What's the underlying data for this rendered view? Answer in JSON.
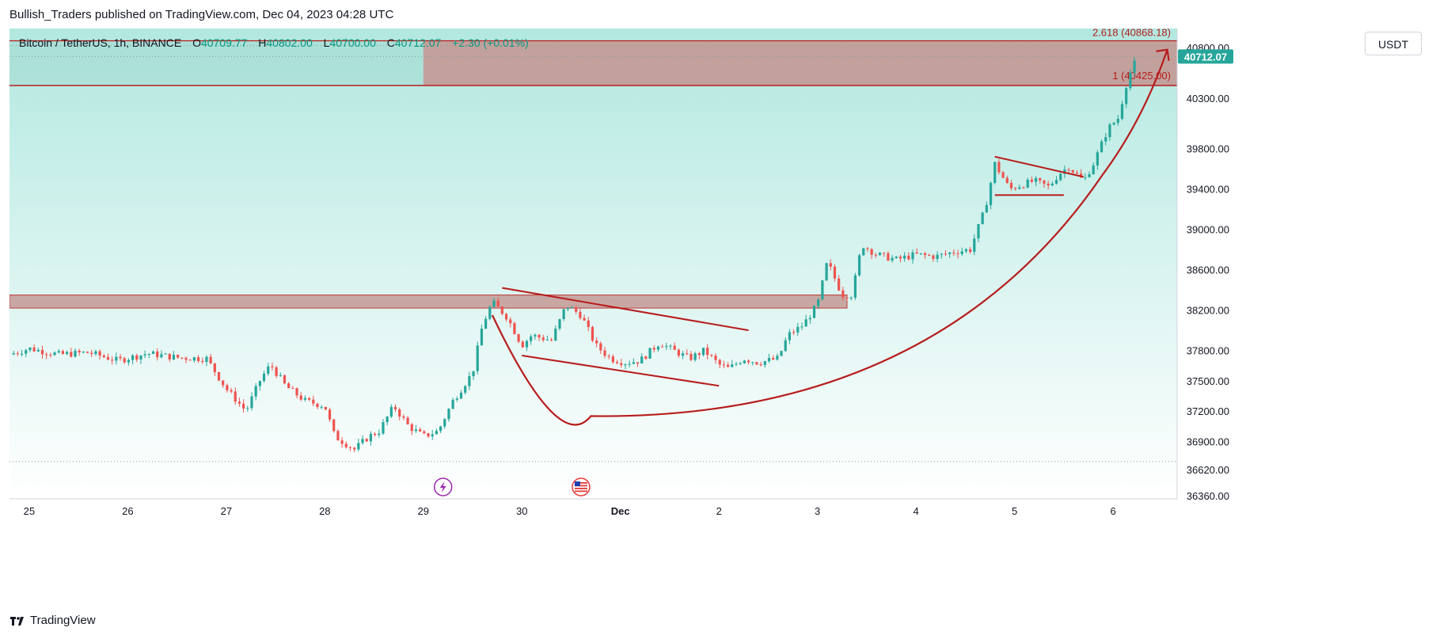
{
  "header": {
    "publisher_line": "Bullish_Traders published on TradingView.com, Dec 04, 2023 04:28 UTC"
  },
  "legend": {
    "symbol": "Bitcoin / TetherUS, 1h, BINANCE",
    "o_label": "O",
    "o_value": "40709.77",
    "h_label": "H",
    "h_value": "40802.00",
    "l_label": "L",
    "l_value": "40700.00",
    "c_label": "C",
    "c_value": "40712.07",
    "change": "+2.30 (+0.01%)"
  },
  "currency": "USDT",
  "footer": {
    "brand": "TradingView"
  },
  "colors": {
    "up": "#26a69a",
    "down": "#ef5350",
    "drawing": "#b71c1c",
    "zone_fill": "#c49a96",
    "bg_top": "#b2e8e0",
    "bg_bottom": "#ffffff"
  },
  "events": [
    {
      "icon": "lightning-event-icon",
      "x_day": 4.2
    },
    {
      "icon": "us-flag-event-icon",
      "x_day": 5.6
    }
  ],
  "chart_data": {
    "type": "candlestick",
    "symbol": "BTCUSDT",
    "interval": "1h",
    "x_ticks": [
      {
        "label": "25",
        "day": 0
      },
      {
        "label": "26",
        "day": 1
      },
      {
        "label": "27",
        "day": 2
      },
      {
        "label": "28",
        "day": 3
      },
      {
        "label": "29",
        "day": 4
      },
      {
        "label": "30",
        "day": 5
      },
      {
        "label": "Dec",
        "day": 6,
        "bold": true
      },
      {
        "label": "2",
        "day": 7
      },
      {
        "label": "3",
        "day": 8
      },
      {
        "label": "4",
        "day": 9
      },
      {
        "label": "5",
        "day": 10
      },
      {
        "label": "6",
        "day": 11
      }
    ],
    "y_ticks": [
      40800,
      40300,
      39800,
      39400,
      39000,
      38600,
      38200,
      37800,
      37500,
      37200,
      36900,
      36620,
      36360
    ],
    "ylim": [
      36330,
      40990
    ],
    "xlim": [
      -0.2,
      11.65
    ],
    "current_price": "40712.07",
    "fib_levels": [
      {
        "label": "2.618 (40868.18)",
        "price": 40868.18
      },
      {
        "label": "1 (40425.00)",
        "price": 40425
      }
    ],
    "dotted_levels": [
      40712.07,
      40820,
      36700
    ],
    "close_path": [
      [
        -0.2,
        37760
      ],
      [
        0,
        37820
      ],
      [
        0.3,
        37760
      ],
      [
        0.6,
        37780
      ],
      [
        0.9,
        37700
      ],
      [
        1.2,
        37770
      ],
      [
        1.5,
        37730
      ],
      [
        1.8,
        37720
      ],
      [
        2.0,
        37420
      ],
      [
        2.2,
        37200
      ],
      [
        2.35,
        37520
      ],
      [
        2.45,
        37660
      ],
      [
        2.6,
        37450
      ],
      [
        2.8,
        37300
      ],
      [
        3.0,
        37250
      ],
      [
        3.1,
        36950
      ],
      [
        3.3,
        36820
      ],
      [
        3.45,
        36950
      ],
      [
        3.55,
        37000
      ],
      [
        3.7,
        37250
      ],
      [
        3.85,
        37050
      ],
      [
        4.0,
        36950
      ],
      [
        4.15,
        37000
      ],
      [
        4.3,
        37300
      ],
      [
        4.5,
        37580
      ],
      [
        4.6,
        38050
      ],
      [
        4.7,
        38280
      ],
      [
        4.85,
        38130
      ],
      [
        5.0,
        37850
      ],
      [
        5.1,
        37950
      ],
      [
        5.3,
        37900
      ],
      [
        5.45,
        38250
      ],
      [
        5.6,
        38150
      ],
      [
        5.75,
        37850
      ],
      [
        5.9,
        37720
      ],
      [
        6.05,
        37680
      ],
      [
        6.2,
        37700
      ],
      [
        6.4,
        37880
      ],
      [
        6.5,
        37820
      ],
      [
        6.7,
        37720
      ],
      [
        6.85,
        37800
      ],
      [
        7.0,
        37660
      ],
      [
        7.1,
        37620
      ],
      [
        7.25,
        37720
      ],
      [
        7.4,
        37680
      ],
      [
        7.5,
        37700
      ],
      [
        7.6,
        37720
      ],
      [
        7.7,
        37950
      ],
      [
        7.85,
        38050
      ],
      [
        8.0,
        38250
      ],
      [
        8.1,
        38680
      ],
      [
        8.25,
        38350
      ],
      [
        8.35,
        38350
      ],
      [
        8.45,
        38850
      ],
      [
        8.6,
        38750
      ],
      [
        8.8,
        38700
      ],
      [
        9.0,
        38750
      ],
      [
        9.2,
        38730
      ],
      [
        9.4,
        38780
      ],
      [
        9.55,
        38800
      ],
      [
        9.7,
        39200
      ],
      [
        9.8,
        39650
      ],
      [
        9.95,
        39400
      ],
      [
        10.1,
        39450
      ],
      [
        10.2,
        39480
      ],
      [
        10.35,
        39420
      ],
      [
        10.45,
        39550
      ],
      [
        10.55,
        39620
      ],
      [
        10.7,
        39480
      ],
      [
        10.8,
        39650
      ],
      [
        10.95,
        40000
      ],
      [
        11.05,
        40100
      ],
      [
        11.15,
        40500
      ],
      [
        11.25,
        40712
      ]
    ],
    "day_step_candles": 24,
    "drawings": {
      "resistance_zone_top": {
        "from_day": 4.0,
        "to_day": 11.65,
        "top": 40868.18,
        "bottom": 40425
      },
      "support_zone": {
        "from_day": -0.2,
        "to_day": 8.3,
        "top": 38350,
        "bottom": 38220
      },
      "cup_curve": {
        "start_day": 4.7,
        "bottom_day": 5.7,
        "bottom_price": 37150,
        "end_day": 10.9,
        "end_price": 39550
      },
      "arrow": {
        "from_day": 10.9,
        "from_price": 39550,
        "to_day": 11.55,
        "to_price": 40780
      },
      "wedge_upper": [
        [
          4.8,
          38420
        ],
        [
          7.3,
          38000
        ]
      ],
      "wedge_lower": [
        [
          5.0,
          37750
        ],
        [
          7.0,
          37450
        ]
      ],
      "flag_upper": [
        [
          9.8,
          39720
        ],
        [
          10.7,
          39520
        ]
      ],
      "flag_lower": [
        [
          9.8,
          39340
        ],
        [
          10.5,
          39340
        ]
      ]
    }
  }
}
